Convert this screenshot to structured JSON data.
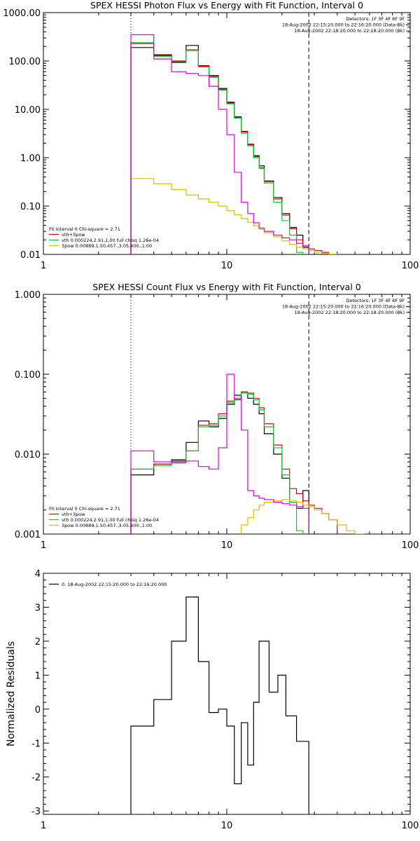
{
  "colors": {
    "total": "#000000",
    "fit": "#dd0000",
    "thermal": "#00cc33",
    "powerlaw": "#ddbb00",
    "background": "#dd00dd",
    "axis": "#000000"
  },
  "chart_data": [
    {
      "type": "line",
      "title": "SPEX HESSI Photon Flux vs Energy with Fit Function, Interval 0",
      "xlabel": "",
      "ylabel": "",
      "xscale": "log",
      "yscale": "log",
      "xlim": [
        1,
        100
      ],
      "ylim": [
        0.01,
        1000
      ],
      "xticks": [
        {
          "v": 1,
          "label": "1"
        },
        {
          "v": 10,
          "label": "10"
        },
        {
          "v": 100,
          "label": "100"
        }
      ],
      "yticks": [
        {
          "v": 0.01,
          "label": "0.01"
        },
        {
          "v": 0.1,
          "label": "0.10"
        },
        {
          "v": 1,
          "label": "1.00"
        },
        {
          "v": 10,
          "label": "10.00"
        },
        {
          "v": 100,
          "label": "100.00"
        },
        {
          "v": 1000,
          "label": "1000.00"
        }
      ],
      "vlines": [
        {
          "x": 3,
          "style": "dotted"
        },
        {
          "x": 28,
          "style": "dashed"
        }
      ],
      "info_lines": [
        "Detectors: 1F 3F 4F 8F 9F",
        "18-Aug-2002 22:15:20.000 to 22:16:20.000 (Data-Bk)",
        "18-Aug-2002 22:18:20.000 to 22:18:20.000 (Bk)"
      ],
      "legend": {
        "title": "Fit Interval 0   Chi-square = 2.71",
        "entries": [
          {
            "label": "vth+3pow",
            "color": "#dd0000"
          },
          {
            "label": "vth 0.000224,2.91,1.00  full chisq 1.26e-04",
            "color": "#00cc33"
          },
          {
            "label": "3pow 0.00889,1.50,457.,3.05,400.,1.00",
            "color": "#ddbb00"
          }
        ]
      },
      "series": [
        {
          "name": "data",
          "color": "#000000",
          "edges": [
            3,
            4,
            5,
            6,
            7,
            8,
            9,
            10,
            11,
            12,
            13,
            14,
            15,
            16,
            18,
            20,
            22,
            24,
            26,
            28
          ],
          "values": [
            190,
            130,
            95,
            210,
            80,
            50,
            27,
            14,
            7,
            3.5,
            1.9,
            1.1,
            0.68,
            0.33,
            0.15,
            0.07,
            0.036,
            0.025,
            0.014
          ]
        },
        {
          "name": "fit",
          "color": "#dd0000",
          "edges": [
            3,
            4,
            5,
            6,
            7,
            8,
            9,
            10,
            11,
            12,
            13,
            14,
            15,
            16,
            18,
            20,
            22,
            24,
            26,
            28,
            30,
            33,
            36
          ],
          "values": [
            230,
            135,
            100,
            170,
            78,
            48,
            26,
            13.5,
            6.8,
            3.4,
            1.85,
            1.05,
            0.62,
            0.32,
            0.14,
            0.065,
            0.034,
            0.02,
            0.015,
            0.013,
            0.012,
            0.011
          ]
        },
        {
          "name": "thermal",
          "color": "#00cc33",
          "edges": [
            3,
            4,
            5,
            6,
            7,
            8,
            9,
            10,
            11,
            12,
            13,
            14,
            15,
            16,
            18,
            20,
            22,
            24,
            26,
            28
          ],
          "values": [
            240,
            125,
            92,
            165,
            75,
            46,
            25,
            13,
            6.6,
            3.2,
            1.75,
            1,
            0.6,
            0.3,
            0.12,
            0.05,
            0.025,
            0.011,
            0.004
          ]
        },
        {
          "name": "powerlaw",
          "color": "#ddbb00",
          "edges": [
            3,
            4,
            5,
            6,
            7,
            8,
            9,
            10,
            11,
            12,
            13,
            14,
            15,
            16,
            18,
            20,
            22,
            24,
            26,
            28,
            30,
            33,
            36,
            40
          ],
          "values": [
            0.37,
            0.29,
            0.22,
            0.17,
            0.14,
            0.12,
            0.1,
            0.08,
            0.066,
            0.055,
            0.046,
            0.039,
            0.033,
            0.028,
            0.023,
            0.019,
            0.016,
            0.014,
            0.013,
            0.012,
            0.011,
            0.0105,
            0.0101
          ]
        },
        {
          "name": "background",
          "color": "#dd00dd",
          "edges": [
            3,
            4,
            5,
            6,
            7,
            8,
            9,
            10,
            11,
            12,
            13,
            14,
            15,
            16,
            18,
            20,
            22,
            24,
            26,
            28
          ],
          "values": [
            350,
            110,
            60,
            55,
            50,
            30,
            10,
            3,
            0.5,
            0.12,
            0.07,
            0.045,
            0.035,
            0.03,
            0.025,
            0.022,
            0.02,
            0.017,
            0.015
          ]
        }
      ]
    },
    {
      "type": "line",
      "title": "SPEX HESSI Count Flux vs Energy with Fit Function, Interval 0",
      "xlabel": "",
      "ylabel": "",
      "xscale": "log",
      "yscale": "log",
      "xlim": [
        1,
        100
      ],
      "ylim": [
        0.001,
        1
      ],
      "xticks": [
        {
          "v": 1,
          "label": "1"
        },
        {
          "v": 10,
          "label": "10"
        },
        {
          "v": 100,
          "label": "100"
        }
      ],
      "yticks": [
        {
          "v": 0.001,
          "label": "0.001"
        },
        {
          "v": 0.01,
          "label": "0.010"
        },
        {
          "v": 0.1,
          "label": "0.100"
        },
        {
          "v": 1,
          "label": "1.000"
        }
      ],
      "vlines": [
        {
          "x": 3,
          "style": "dotted"
        },
        {
          "x": 28,
          "style": "dashed"
        }
      ],
      "info_lines": [
        "Detectors: 1F 3F 4F 8F 9F",
        "18-Aug-2002 22:15:20.000 to 22:16:20.000 (Data-Bk)",
        "18-Aug-2002 22:18:20.000 to 22:18:20.000 (Bk)"
      ],
      "legend": {
        "title": "Fit Interval 0   Chi-square = 2.71",
        "entries": [
          {
            "label": "vth+3pow",
            "color": "#dd0000"
          },
          {
            "label": "vth 0.000224,2.91,1.00  full chisq 1.26e-04",
            "color": "#00cc33"
          },
          {
            "label": "3pow 0.00889,1.50,457.,3.05,400.,1.00",
            "color": "#ddbb00"
          }
        ]
      },
      "series": [
        {
          "name": "data",
          "color": "#000000",
          "edges": [
            3,
            4,
            5,
            6,
            7,
            8,
            9,
            10,
            11,
            12,
            13,
            14,
            15,
            16,
            18,
            20,
            22,
            24,
            26,
            28
          ],
          "values": [
            0.0055,
            0.0075,
            0.0085,
            0.014,
            0.026,
            0.022,
            0.028,
            0.042,
            0.048,
            0.06,
            0.05,
            0.042,
            0.032,
            0.018,
            0.01,
            0.005,
            0.0025,
            0.0021,
            0.0035
          ]
        },
        {
          "name": "fit",
          "color": "#dd0000",
          "edges": [
            3,
            4,
            5,
            6,
            7,
            8,
            9,
            10,
            11,
            12,
            13,
            14,
            15,
            16,
            18,
            20,
            22,
            24,
            26,
            28,
            30,
            33,
            36,
            40
          ],
          "values": [
            0.0065,
            0.0075,
            0.0082,
            0.011,
            0.023,
            0.024,
            0.032,
            0.046,
            0.055,
            0.06,
            0.058,
            0.05,
            0.038,
            0.024,
            0.013,
            0.0065,
            0.0037,
            0.0032,
            0.0026,
            0.0023,
            0.0021,
            0.0018,
            0.0015
          ]
        },
        {
          "name": "thermal",
          "color": "#00cc33",
          "edges": [
            3,
            4,
            5,
            6,
            7,
            8,
            9,
            10,
            11,
            12,
            13,
            14,
            15,
            16,
            18,
            20,
            22,
            24,
            26,
            28
          ],
          "values": [
            0.0065,
            0.0072,
            0.008,
            0.011,
            0.022,
            0.023,
            0.03,
            0.044,
            0.054,
            0.058,
            0.056,
            0.048,
            0.036,
            0.022,
            0.012,
            0.0055,
            0.0025,
            0.0011,
            0.0004
          ]
        },
        {
          "name": "powerlaw",
          "color": "#ddbb00",
          "edges": [
            10,
            11,
            12,
            13,
            14,
            15,
            16,
            18,
            20,
            22,
            24,
            26,
            28,
            30,
            33,
            36,
            40,
            45,
            50,
            56,
            62
          ],
          "values": [
            0.0005,
            0.0009,
            0.0013,
            0.0016,
            0.002,
            0.0023,
            0.0025,
            0.0026,
            0.0027,
            0.0026,
            0.0025,
            0.0023,
            0.0022,
            0.002,
            0.0018,
            0.0015,
            0.0013,
            0.0011,
            0.001,
            0.0009
          ]
        },
        {
          "name": "background",
          "color": "#dd00dd",
          "edges": [
            3,
            4,
            5,
            6,
            7,
            8,
            9,
            10,
            11,
            12,
            13,
            14,
            15,
            16,
            18,
            20,
            22,
            24,
            26,
            28
          ],
          "values": [
            0.011,
            0.008,
            0.0078,
            0.0082,
            0.007,
            0.0065,
            0.012,
            0.1,
            0.05,
            0.02,
            0.0035,
            0.003,
            0.0028,
            0.0027,
            0.0025,
            0.0024,
            0.0023,
            0.0022,
            0.0021
          ]
        }
      ]
    },
    {
      "type": "line",
      "title": "",
      "xlabel": "",
      "ylabel": "Normalized Residuals",
      "xscale": "log",
      "yscale": "linear",
      "xlim": [
        1,
        100
      ],
      "ylim": [
        -3.1,
        4
      ],
      "xticks": [
        {
          "v": 1,
          "label": "1"
        },
        {
          "v": 10,
          "label": "10"
        },
        {
          "v": 100,
          "label": "100"
        }
      ],
      "yticks": [
        {
          "v": -3,
          "label": "-3"
        },
        {
          "v": -2,
          "label": "-2"
        },
        {
          "v": -1,
          "label": "-1"
        },
        {
          "v": 0,
          "label": "0"
        },
        {
          "v": 1,
          "label": "1"
        },
        {
          "v": 2,
          "label": "2"
        },
        {
          "v": 3,
          "label": "3"
        },
        {
          "v": 4,
          "label": "4"
        }
      ],
      "legend": {
        "title": "",
        "entries": [
          {
            "label": "0. 18-Aug-2002 22:15:20.000 to 22:16:20.000",
            "color": "#000000"
          }
        ]
      },
      "series": [
        {
          "name": "residuals",
          "color": "#000000",
          "edges": [
            3,
            3.5,
            4,
            4.5,
            5,
            5.5,
            6,
            6.5,
            7,
            7.5,
            8,
            8.5,
            9,
            9.5,
            10,
            10.5,
            11,
            11.5,
            12,
            12.5,
            13,
            13.5,
            14,
            14.5,
            15,
            16,
            17,
            18,
            19,
            20,
            21,
            22,
            24,
            26,
            28
          ],
          "values": [
            -0.5,
            -0.5,
            0.28,
            0.28,
            2,
            2,
            3.3,
            3.3,
            1.4,
            1.4,
            -0.1,
            -0.1,
            0,
            0,
            -0.5,
            -0.5,
            -2.2,
            -2.2,
            -0.4,
            -0.4,
            -1.65,
            -1.65,
            0.2,
            0.2,
            2,
            2,
            0.5,
            0.5,
            1,
            1,
            -0.2,
            -0.2,
            -0.95,
            -0.95
          ]
        }
      ]
    }
  ]
}
